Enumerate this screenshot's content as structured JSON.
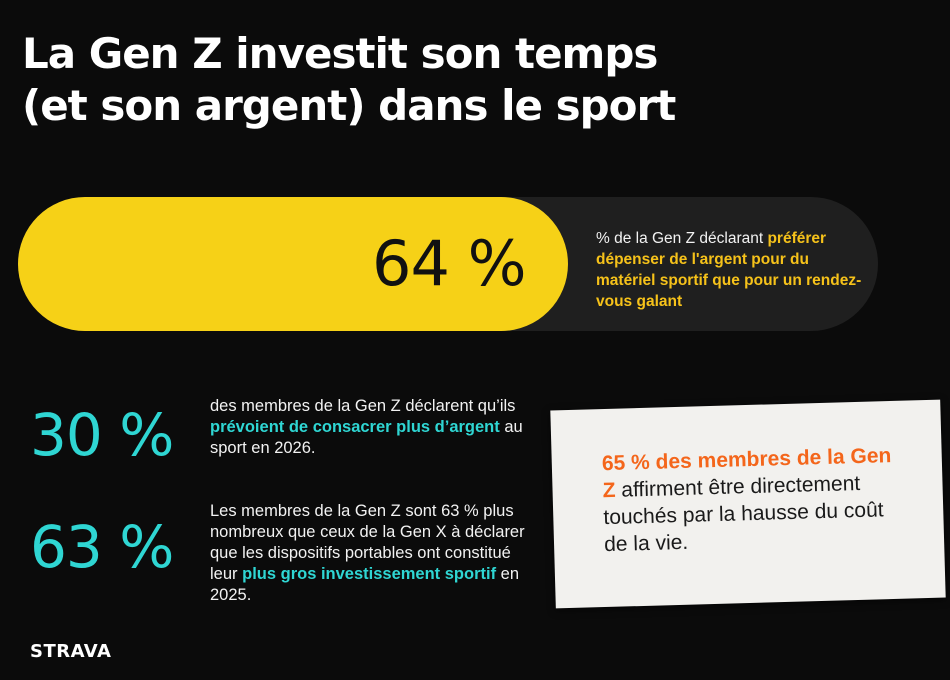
{
  "title": {
    "line1": "La Gen Z investit son temps",
    "line2": "(et son argent) dans le sport"
  },
  "colors": {
    "background": "#0b0b0b",
    "yellow": "#f6d117",
    "cyan": "#2fd6d3",
    "orange": "#f4661b",
    "note": "#f2f1ee"
  },
  "highlight_stat": {
    "value_label": "64 %",
    "fraction": 0.64,
    "text_before": "% de la Gen Z déclarant ",
    "text_highlight": "préférer dépenser de l'argent pour du matériel sportif que pour un rendez-vous galant"
  },
  "stats": [
    {
      "value_label": "30 %",
      "text_before": "des membres de la Gen Z déclarent qu’ils ",
      "text_highlight": "prévoient de consacrer plus d’argent",
      "text_after": " au sport en 2026."
    },
    {
      "value_label": "63 %",
      "text_before": "Les membres de la Gen Z sont 63 % plus nombreux que ceux de la Gen X à déclarer que les dispositifs portables ont constitué leur ",
      "text_highlight": "plus gros investissement sportif",
      "text_after": " en 2025."
    }
  ],
  "note": {
    "highlight": "65 % des membres de la Gen Z",
    "text": "affirment être directement touchés par la hausse du coût de la vie."
  },
  "logo": "STRAVA"
}
